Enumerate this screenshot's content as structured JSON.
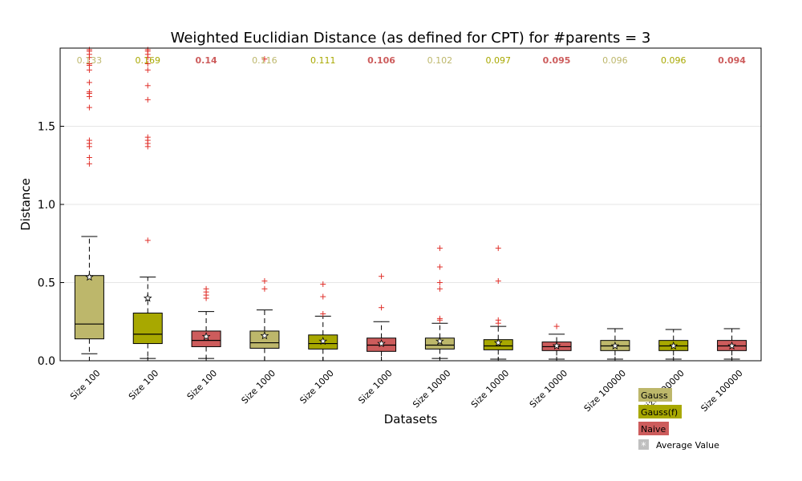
{
  "chart_data": {
    "type": "box",
    "title": "Weighted Euclidian Distance (as defined for CPT) for #parents = 3",
    "xlabel": "Datasets",
    "ylabel": "Distance",
    "ylim": [
      0.0,
      2.0
    ],
    "yticks": [
      "0.0",
      "0.5",
      "1.0",
      "1.5"
    ],
    "grid": "horizontal",
    "legend_placement": "bottom-right",
    "legend": [
      "Gauss",
      "Gauss(f)",
      "Naive",
      "Average Value"
    ],
    "colors": {
      "Gauss": "#bdb76b",
      "Gauss(f)": "#a8a800",
      "Naive": "#cd5c5c",
      "Average Value": "#c0c0c0",
      "outlier": "#e0302a"
    },
    "categories": [
      "Size 100",
      "Size 100",
      "Size 100",
      "Size 1000",
      "Size 1000",
      "Size 1000",
      "Size 10000",
      "Size 10000",
      "Size 10000",
      "Size 100000",
      "Size 100000",
      "Size 100000"
    ],
    "boxes": [
      {
        "category": "Size 100",
        "series": "Gauss",
        "min": 0.045,
        "q1": 0.14,
        "median": 0.235,
        "q3": 0.545,
        "max": 0.795,
        "mean": 0.535,
        "avg_label": "0.133",
        "outliers": [
          1.26,
          1.3,
          1.37,
          1.39,
          1.41,
          1.62,
          1.69,
          1.71,
          1.72,
          1.78,
          1.86,
          1.89,
          1.9,
          1.94,
          1.96,
          1.98,
          1.99
        ]
      },
      {
        "category": "Size 100",
        "series": "Gauss(f)",
        "min": 0.015,
        "q1": 0.11,
        "median": 0.17,
        "q3": 0.305,
        "max": 0.535,
        "mean": 0.4,
        "avg_label": "0.169",
        "outliers": [
          0.77,
          1.37,
          1.39,
          1.41,
          1.43,
          1.67,
          1.76,
          1.86,
          1.9,
          1.94,
          1.96,
          1.98,
          1.99
        ]
      },
      {
        "category": "Size 100",
        "series": "Naive",
        "min": 0.015,
        "q1": 0.09,
        "median": 0.13,
        "q3": 0.19,
        "max": 0.315,
        "mean": 0.155,
        "avg_label": "0.14",
        "outliers": [
          0.4,
          0.42,
          0.44,
          0.46
        ]
      },
      {
        "category": "Size 1000",
        "series": "Gauss",
        "min": 0.0,
        "q1": 0.08,
        "median": 0.115,
        "q3": 0.19,
        "max": 0.325,
        "mean": 0.16,
        "avg_label": "0.116",
        "outliers": [
          0.46,
          0.51,
          1.93
        ]
      },
      {
        "category": "Size 1000",
        "series": "Gauss(f)",
        "min": 0.0,
        "q1": 0.075,
        "median": 0.11,
        "q3": 0.165,
        "max": 0.285,
        "mean": 0.125,
        "avg_label": "0.111",
        "outliers": [
          0.3,
          0.41,
          0.49
        ]
      },
      {
        "category": "Size 1000",
        "series": "Naive",
        "min": 0.0,
        "q1": 0.06,
        "median": 0.1,
        "q3": 0.145,
        "max": 0.25,
        "mean": 0.11,
        "avg_label": "0.106",
        "outliers": [
          0.34,
          0.54
        ]
      },
      {
        "category": "Size 10000",
        "series": "Gauss",
        "min": 0.015,
        "q1": 0.075,
        "median": 0.1,
        "q3": 0.145,
        "max": 0.24,
        "mean": 0.125,
        "avg_label": "0.102",
        "outliers": [
          0.26,
          0.27,
          0.46,
          0.5,
          0.6,
          0.72
        ]
      },
      {
        "category": "Size 10000",
        "series": "Gauss(f)",
        "min": 0.01,
        "q1": 0.07,
        "median": 0.095,
        "q3": 0.135,
        "max": 0.22,
        "mean": 0.115,
        "avg_label": "0.097",
        "outliers": [
          0.24,
          0.26,
          0.51,
          0.72
        ]
      },
      {
        "category": "Size 10000",
        "series": "Naive",
        "min": 0.01,
        "q1": 0.065,
        "median": 0.09,
        "q3": 0.12,
        "max": 0.17,
        "mean": 0.095,
        "avg_label": "0.095",
        "outliers": [
          0.22
        ]
      },
      {
        "category": "Size 100000",
        "series": "Gauss",
        "min": 0.01,
        "q1": 0.065,
        "median": 0.095,
        "q3": 0.13,
        "max": 0.205,
        "mean": 0.095,
        "avg_label": "0.096",
        "outliers": []
      },
      {
        "category": "Size 100000",
        "series": "Gauss(f)",
        "min": 0.01,
        "q1": 0.065,
        "median": 0.095,
        "q3": 0.13,
        "max": 0.2,
        "mean": 0.095,
        "avg_label": "0.096",
        "outliers": []
      },
      {
        "category": "Size 100000",
        "series": "Naive",
        "min": 0.01,
        "q1": 0.065,
        "median": 0.095,
        "q3": 0.13,
        "max": 0.205,
        "mean": 0.095,
        "avg_label": "0.094",
        "outliers": []
      }
    ]
  }
}
